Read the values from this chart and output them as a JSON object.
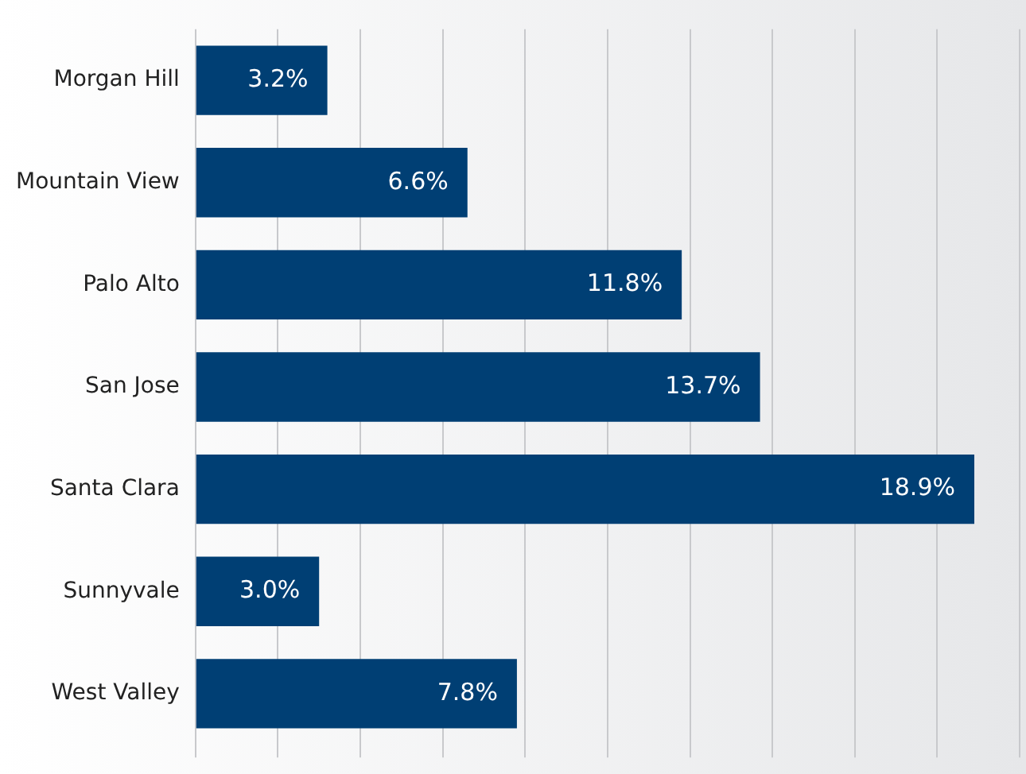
{
  "chart_data": {
    "type": "bar",
    "orientation": "horizontal",
    "categories": [
      "Morgan Hill",
      "Mountain View",
      "Palo Alto",
      "San Jose",
      "Santa Clara",
      "Sunnyvale",
      "West Valley"
    ],
    "values": [
      3.2,
      6.6,
      11.8,
      13.7,
      18.9,
      3.0,
      7.8
    ],
    "value_labels": [
      "3.2%",
      "6.6%",
      "11.8%",
      "13.7%",
      "18.9%",
      "3.0%",
      "7.8%"
    ],
    "color": "#003f74",
    "xlim": [
      0,
      20
    ],
    "xticks": [
      {
        "value": 0,
        "label": null
      },
      {
        "value": 2,
        "label": null
      },
      {
        "value": 4,
        "label": null
      },
      {
        "value": 6,
        "label": null
      },
      {
        "value": 8,
        "label": null
      },
      {
        "value": 10,
        "label": null
      },
      {
        "value": 12,
        "label": null
      },
      {
        "value": 14,
        "label": null
      },
      {
        "value": 16,
        "label": null
      },
      {
        "value": 18,
        "label": null
      },
      {
        "value": 20,
        "label": null
      }
    ],
    "tick_labels": "y",
    "grid": "x",
    "legend": false
  }
}
